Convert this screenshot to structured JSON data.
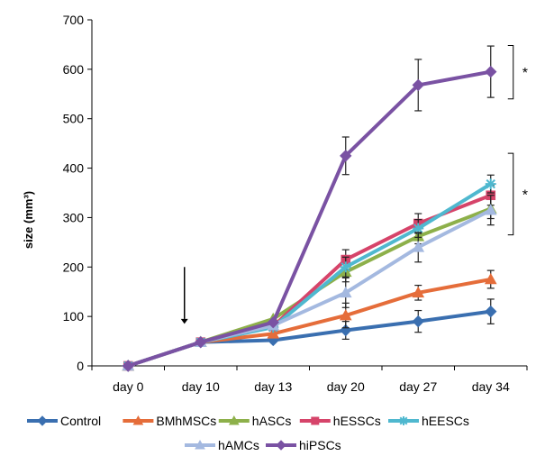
{
  "chart_data": {
    "type": "line",
    "title": "",
    "xlabel": "",
    "ylabel": "size (mm³)",
    "categories": [
      "day 0",
      "day 10",
      "day 13",
      "day 20",
      "day 27",
      "day 34"
    ],
    "ylim": [
      0,
      700
    ],
    "yticks": [
      0,
      100,
      200,
      300,
      400,
      500,
      600,
      700
    ],
    "grid": false,
    "legend_position": "bottom",
    "series": [
      {
        "name": "Control",
        "color": "#3a6fb0",
        "marker": "diamond",
        "values": [
          0,
          48,
          52,
          72,
          90,
          110
        ],
        "errors": [
          0,
          0,
          0,
          18,
          22,
          25
        ]
      },
      {
        "name": "BMhMSCs",
        "color": "#e56d3a",
        "marker": "triangle",
        "values": [
          0,
          48,
          65,
          102,
          148,
          175
        ],
        "errors": [
          0,
          0,
          0,
          25,
          15,
          18
        ]
      },
      {
        "name": "hASCs",
        "color": "#8db04a",
        "marker": "triangle",
        "values": [
          0,
          48,
          95,
          190,
          262,
          318
        ],
        "errors": [
          0,
          0,
          0,
          20,
          15,
          20
        ]
      },
      {
        "name": "hESSCs",
        "color": "#d6446a",
        "marker": "square",
        "values": [
          0,
          48,
          80,
          215,
          288,
          345
        ],
        "errors": [
          0,
          0,
          0,
          20,
          20,
          20
        ]
      },
      {
        "name": "hEESCs",
        "color": "#4fb8cf",
        "marker": "star",
        "values": [
          0,
          48,
          78,
          200,
          278,
          368
        ],
        "errors": [
          0,
          0,
          0,
          20,
          18,
          18
        ]
      },
      {
        "name": "hAMCs",
        "color": "#a4b9e0",
        "marker": "triangle",
        "values": [
          0,
          48,
          82,
          148,
          240,
          315
        ],
        "errors": [
          0,
          0,
          0,
          30,
          30,
          30
        ]
      },
      {
        "name": "hiPSCs",
        "color": "#7a52a3",
        "marker": "diamond",
        "values": [
          0,
          48,
          88,
          425,
          568,
          595
        ],
        "errors": [
          0,
          0,
          0,
          38,
          52,
          52
        ]
      }
    ],
    "annotations": {
      "arrow_at_category": "day 10",
      "significance_marks": [
        "*",
        "*"
      ]
    }
  }
}
